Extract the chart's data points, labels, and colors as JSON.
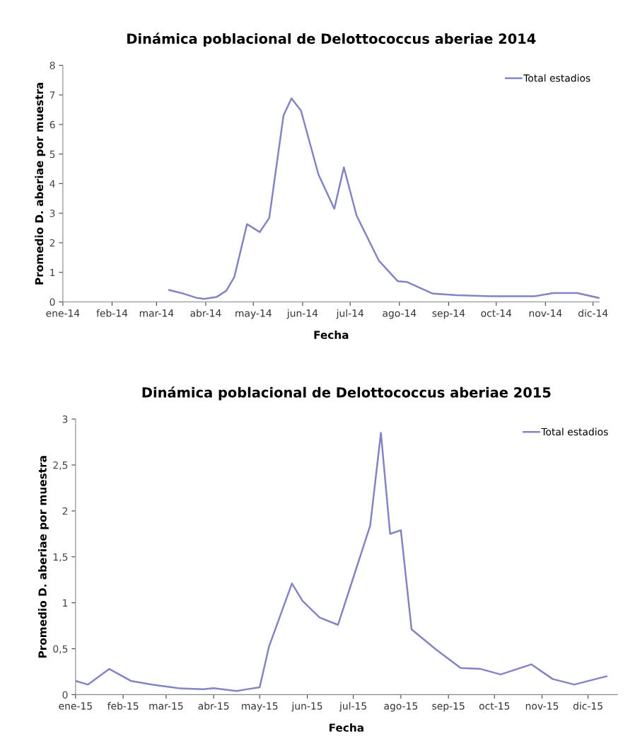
{
  "chart_data": [
    {
      "type": "line",
      "title": "Dinámica poblacional de Delottococcus aberiae 2014",
      "xlabel": "Fecha",
      "ylabel": "Promedio D. aberiae por muestra",
      "xlim": [
        "2014-01-01",
        "2014-12-05"
      ],
      "xticks": [
        {
          "value": "2014-01-01",
          "label": "ene-14"
        },
        {
          "value": "2014-02-01",
          "label": "feb-14"
        },
        {
          "value": "2014-03-01",
          "label": "mar-14"
        },
        {
          "value": "2014-04-01",
          "label": "abr-14"
        },
        {
          "value": "2014-05-01",
          "label": "may-14"
        },
        {
          "value": "2014-06-01",
          "label": "jun-14"
        },
        {
          "value": "2014-07-01",
          "label": "jul-14"
        },
        {
          "value": "2014-08-01",
          "label": "ago-14"
        },
        {
          "value": "2014-09-01",
          "label": "sep-14"
        },
        {
          "value": "2014-10-01",
          "label": "oct-14"
        },
        {
          "value": "2014-11-01",
          "label": "nov-14"
        },
        {
          "value": "2014-12-01",
          "label": "dic-14"
        }
      ],
      "ylim": [
        0,
        8
      ],
      "yticks": [
        0,
        1,
        2,
        3,
        4,
        5,
        6,
        7,
        8
      ],
      "grid": false,
      "legend": "top right",
      "marker": "none",
      "line_style": "solid",
      "x": [
        "2014-03-09",
        "2014-03-18",
        "2014-03-26",
        "2014-03-31",
        "2014-04-08",
        "2014-04-14",
        "2014-04-19",
        "2014-04-27",
        "2014-05-05",
        "2014-05-11",
        "2014-05-20",
        "2014-05-25",
        "2014-05-31",
        "2014-06-11",
        "2014-06-21",
        "2014-06-27",
        "2014-07-05",
        "2014-07-19",
        "2014-07-31",
        "2014-08-06",
        "2014-08-22",
        "2014-09-06",
        "2014-09-27",
        "2014-10-25",
        "2014-11-06",
        "2014-11-21",
        "2014-12-05"
      ],
      "series": [
        {
          "name": "Total estadios",
          "color": "#8484c4",
          "values": [
            0.4,
            0.28,
            0.14,
            0.1,
            0.17,
            0.38,
            0.84,
            2.63,
            2.36,
            2.84,
            6.31,
            6.88,
            6.47,
            4.31,
            3.15,
            4.55,
            2.92,
            1.4,
            0.7,
            0.67,
            0.28,
            0.23,
            0.19,
            0.19,
            0.3,
            0.3,
            0.13
          ]
        }
      ]
    },
    {
      "type": "line",
      "title": "Dinámica poblacional de Delottococcus aberiae 2015",
      "xlabel": "Fecha",
      "ylabel": "Promedio D. aberiae por muestra",
      "xlim": [
        "2015-01-01",
        "2015-12-20"
      ],
      "xticks": [
        {
          "value": "2015-01-01",
          "label": "ene-15"
        },
        {
          "value": "2015-02-01",
          "label": "feb-15"
        },
        {
          "value": "2015-03-01",
          "label": "mar-15"
        },
        {
          "value": "2015-04-01",
          "label": "abr-15"
        },
        {
          "value": "2015-05-01",
          "label": "may-15"
        },
        {
          "value": "2015-06-01",
          "label": "jun-15"
        },
        {
          "value": "2015-07-01",
          "label": "jul-15"
        },
        {
          "value": "2015-08-01",
          "label": "ago-15"
        },
        {
          "value": "2015-09-01",
          "label": "sep-15"
        },
        {
          "value": "2015-10-01",
          "label": "oct-15"
        },
        {
          "value": "2015-11-01",
          "label": "nov-15"
        },
        {
          "value": "2015-12-01",
          "label": "dic-15"
        }
      ],
      "ylim": [
        0,
        3
      ],
      "yticks": [
        0,
        {
          "value": 0.5,
          "label": "0,5"
        },
        1,
        {
          "value": 1.5,
          "label": "1,5"
        },
        2,
        {
          "value": 2.5,
          "label": "2,5"
        },
        3
      ],
      "grid": false,
      "legend": "top right",
      "marker": "none",
      "line_style": "solid",
      "x": [
        "2015-01-01",
        "2015-01-09",
        "2015-01-23",
        "2015-02-06",
        "2015-02-20",
        "2015-03-09",
        "2015-03-25",
        "2015-04-01",
        "2015-04-16",
        "2015-04-23",
        "2015-05-01",
        "2015-05-07",
        "2015-05-22",
        "2015-05-29",
        "2015-06-09",
        "2015-06-21",
        "2015-07-12",
        "2015-07-19",
        "2015-07-25",
        "2015-08-01",
        "2015-08-08",
        "2015-08-24",
        "2015-09-09",
        "2015-09-22",
        "2015-10-05",
        "2015-10-25",
        "2015-11-08",
        "2015-11-22",
        "2015-12-13"
      ],
      "series": [
        {
          "name": "Total estadios",
          "color": "#8484c4",
          "values": [
            0.15,
            0.11,
            0.28,
            0.15,
            0.11,
            0.07,
            0.06,
            0.07,
            0.04,
            0.06,
            0.08,
            0.52,
            1.21,
            1.02,
            0.84,
            0.76,
            1.84,
            2.85,
            1.75,
            1.79,
            0.71,
            0.49,
            0.29,
            0.28,
            0.22,
            0.33,
            0.17,
            0.11,
            0.2
          ]
        }
      ]
    }
  ]
}
